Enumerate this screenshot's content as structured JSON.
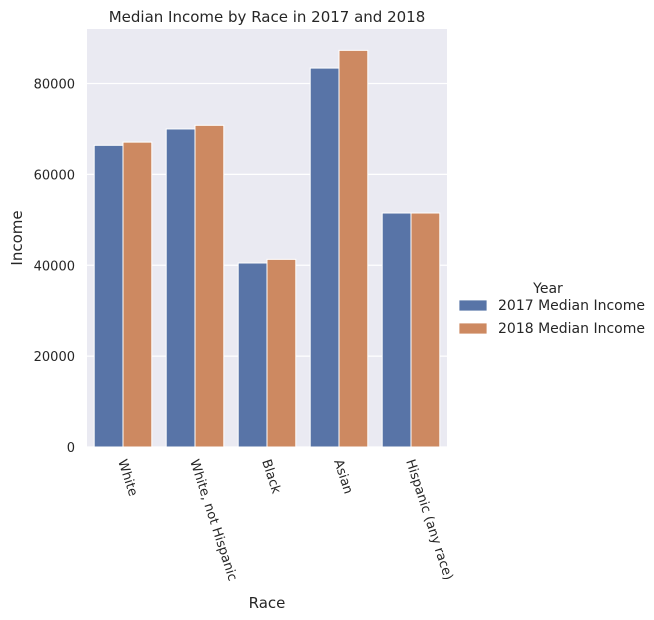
{
  "chart_data": {
    "type": "bar",
    "title": "Median Income by Race in 2017  and 2018",
    "xlabel": "Race",
    "ylabel": "Income",
    "categories": [
      "White",
      "White, not Hispanic",
      "Black",
      "Asian",
      "Hispanic (any race)"
    ],
    "series": [
      {
        "name": "2017 Median Income",
        "color": "#5874a7",
        "values": [
          66400,
          70000,
          40500,
          83400,
          51500
        ]
      },
      {
        "name": "2018 Median Income",
        "color": "#cd8961",
        "values": [
          67100,
          70800,
          41300,
          87300,
          51500
        ]
      }
    ],
    "ylim": [
      0,
      92000
    ],
    "yticks": [
      0,
      20000,
      40000,
      60000,
      80000
    ],
    "ytick_labels": [
      "0",
      "20000",
      "40000",
      "60000",
      "80000"
    ],
    "grid": true,
    "legend": {
      "title": "Year",
      "placement": "right"
    },
    "colors": {
      "background": "#eaeaf2",
      "grid": "#ffffff"
    }
  }
}
